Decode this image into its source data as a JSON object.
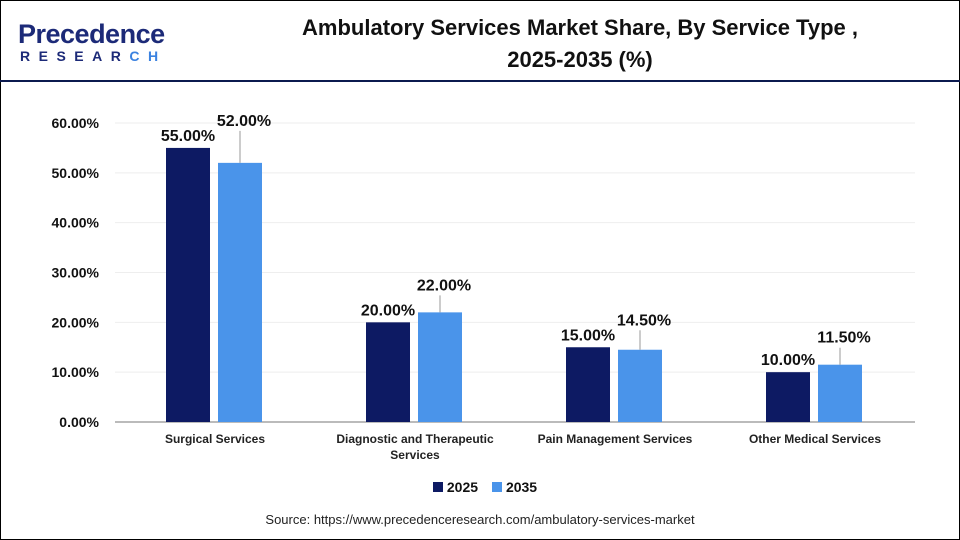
{
  "logo": {
    "line1": "Precedence",
    "line2": "RESEARCH"
  },
  "title_line1": "Ambulatory Services Market Share, By Service Type ,",
  "title_line2": "2025-2035 (%)",
  "source": "Source: https://www.precedenceresearch.com/ambulatory-services-market",
  "colors": {
    "2025": "#0d1a63",
    "2035": "#4a94ea",
    "header_line": "#0b1a4f"
  },
  "chart_data": {
    "type": "bar",
    "title": "Ambulatory Services Market Share, By Service Type , 2025-2035 (%)",
    "categories": [
      [
        "Surgical Services"
      ],
      [
        "Diagnostic and Therapeutic",
        "Services"
      ],
      [
        "Pain Management Services"
      ],
      [
        "Other Medical Services"
      ]
    ],
    "series": [
      {
        "name": "2025",
        "values": [
          55.0,
          20.0,
          15.0,
          10.0
        ],
        "labels": [
          "55.00%",
          "20.00%",
          "15.00%",
          "10.00%"
        ]
      },
      {
        "name": "2035",
        "values": [
          52.0,
          22.0,
          14.5,
          11.5
        ],
        "labels": [
          "52.00%",
          "22.00%",
          "14.50%",
          "11.50%"
        ]
      }
    ],
    "ylim": [
      0,
      60
    ],
    "yticks": [
      "0.00%",
      "10.00%",
      "20.00%",
      "30.00%",
      "40.00%",
      "50.00%",
      "60.00%"
    ],
    "grid": true,
    "legend_placement": "bottom"
  }
}
